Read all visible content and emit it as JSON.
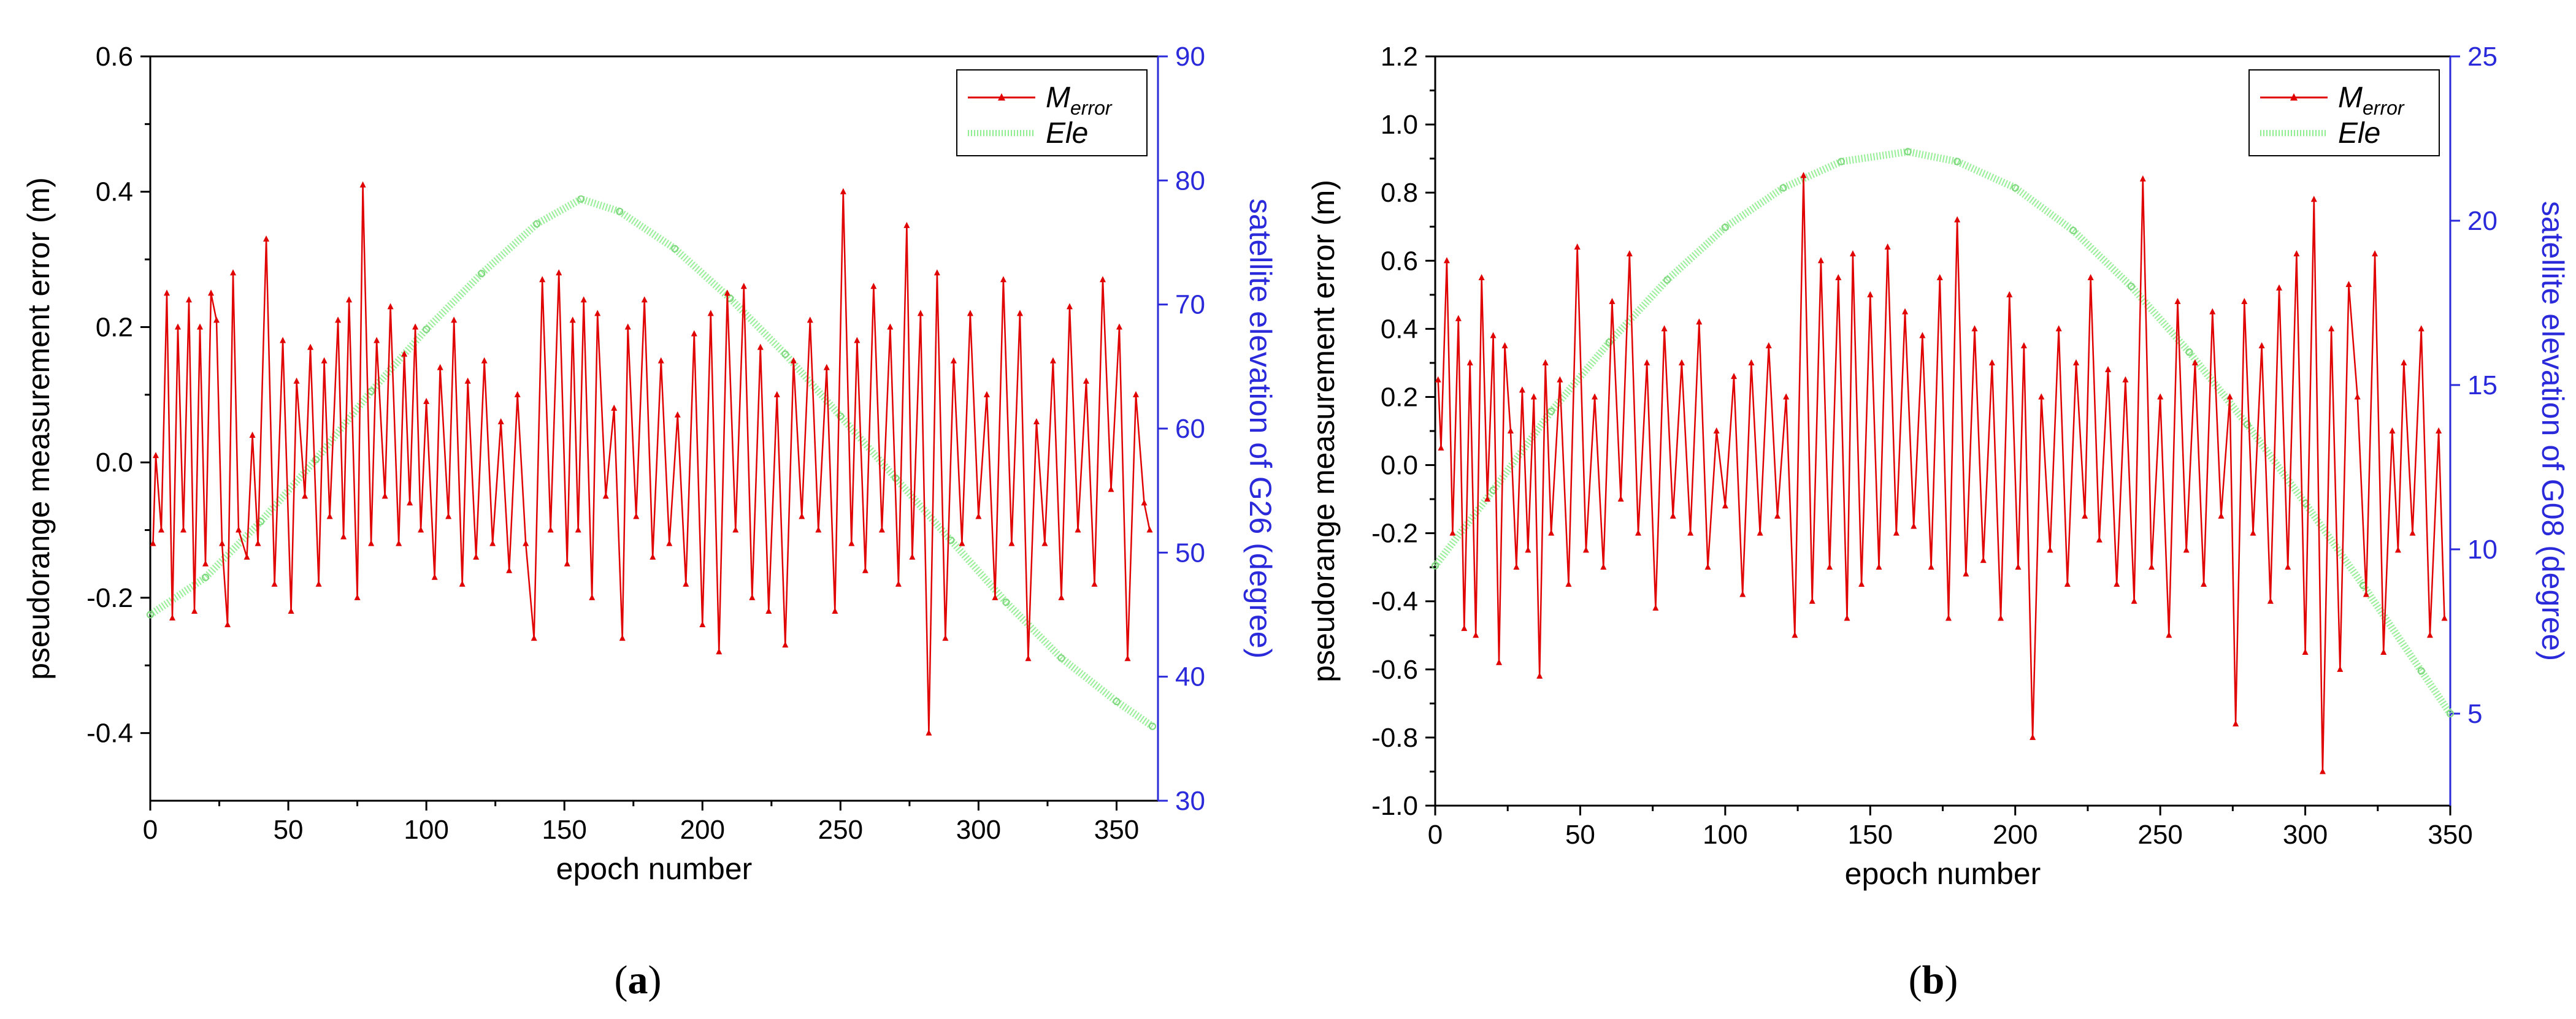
{
  "charts": [
    {
      "panel": "a",
      "panel_label_open": "(",
      "panel_label_letter": "a",
      "panel_label_close": ")",
      "xlabel": "epoch number",
      "ylabel_left": "pseudorange measurement error (m)",
      "ylabel_right": "satellite elevation of G26 (degree)",
      "xlim": [
        0,
        365
      ],
      "ylim_left": [
        -0.5,
        0.6
      ],
      "ylim_right": [
        30,
        90
      ],
      "xticks": [
        0,
        50,
        100,
        150,
        200,
        250,
        300,
        350
      ],
      "yticks_left": [
        "-0.4",
        "-0.2",
        "0.0",
        "0.2",
        "0.4",
        "0.6"
      ],
      "yticks_left_values": [
        -0.4,
        -0.2,
        0.0,
        0.2,
        0.4,
        0.6
      ],
      "yticks_right": [
        30,
        40,
        50,
        60,
        70,
        80,
        90
      ],
      "legend": [
        "M",
        "Ele"
      ],
      "legend_sub": "error"
    },
    {
      "panel": "b",
      "panel_label_open": "(",
      "panel_label_letter": "b",
      "panel_label_close": ")",
      "xlabel": "epoch number",
      "ylabel_left": "pseudorange measurement error (m)",
      "ylabel_right": "satellite elevation of G08 (degree)",
      "xlim": [
        0,
        350
      ],
      "ylim_left": [
        -1.0,
        1.2
      ],
      "ylim_right": [
        2.2,
        25
      ],
      "xticks": [
        0,
        50,
        100,
        150,
        200,
        250,
        300,
        350
      ],
      "yticks_left": [
        "-1.0",
        "-0.8",
        "-0.6",
        "-0.4",
        "-0.2",
        "0.0",
        "0.2",
        "0.4",
        "0.6",
        "0.8",
        "1.0",
        "1.2"
      ],
      "yticks_left_values": [
        -1.0,
        -0.8,
        -0.6,
        -0.4,
        -0.2,
        0.0,
        0.2,
        0.4,
        0.6,
        0.8,
        1.0,
        1.2
      ],
      "yticks_right": [
        5,
        10,
        15,
        20,
        25
      ],
      "legend": [
        "M",
        "Ele"
      ],
      "legend_sub": "error"
    }
  ],
  "chart_data": [
    {
      "type": "line",
      "title": "(a)",
      "xlabel": "epoch number",
      "ylabel": "pseudorange measurement error (m)",
      "y2label": "satellite elevation of G26 (degree)",
      "series": [
        {
          "name": "M_error",
          "axis": "left",
          "color": "#e00000",
          "x": [
            1,
            2,
            4,
            6,
            8,
            10,
            12,
            14,
            16,
            18,
            20,
            22,
            24,
            26,
            28,
            30,
            32,
            35,
            37,
            39,
            42,
            45,
            48,
            51,
            53,
            56,
            58,
            61,
            63,
            65,
            68,
            70,
            72,
            75,
            77,
            80,
            82,
            85,
            87,
            90,
            92,
            94,
            96,
            98,
            100,
            103,
            105,
            108,
            110,
            113,
            115,
            118,
            121,
            124,
            127,
            130,
            133,
            136,
            139,
            142,
            145,
            148,
            151,
            153,
            155,
            157,
            160,
            162,
            165,
            168,
            171,
            173,
            176,
            179,
            182,
            185,
            188,
            191,
            194,
            197,
            200,
            203,
            206,
            209,
            212,
            215,
            218,
            221,
            224,
            227,
            230,
            233,
            236,
            239,
            242,
            245,
            248,
            251,
            254,
            256,
            259,
            262,
            265,
            268,
            271,
            274,
            276,
            279,
            282,
            285,
            288,
            291,
            294,
            297,
            300,
            303,
            306,
            309,
            312,
            315,
            318,
            321,
            324,
            327,
            330,
            333,
            336,
            339,
            342,
            345,
            348,
            351,
            354,
            357,
            360,
            362
          ],
          "values": [
            -0.12,
            0.01,
            -0.1,
            0.25,
            -0.23,
            0.2,
            -0.1,
            0.24,
            -0.22,
            0.2,
            -0.15,
            0.25,
            0.21,
            -0.12,
            -0.24,
            0.28,
            -0.1,
            -0.14,
            0.04,
            -0.12,
            0.33,
            -0.18,
            0.18,
            -0.22,
            0.12,
            -0.05,
            0.17,
            -0.18,
            0.15,
            -0.08,
            0.21,
            -0.11,
            0.24,
            -0.2,
            0.41,
            -0.12,
            0.18,
            -0.05,
            0.23,
            -0.12,
            0.16,
            -0.06,
            0.2,
            -0.1,
            0.09,
            -0.17,
            0.14,
            -0.08,
            0.21,
            -0.18,
            0.12,
            -0.14,
            0.15,
            -0.12,
            0.06,
            -0.16,
            0.1,
            -0.12,
            -0.26,
            0.27,
            -0.1,
            0.28,
            -0.15,
            0.21,
            -0.1,
            0.24,
            -0.2,
            0.22,
            -0.05,
            0.08,
            -0.26,
            0.2,
            -0.08,
            0.24,
            -0.14,
            0.15,
            -0.12,
            0.07,
            -0.18,
            0.19,
            -0.24,
            0.22,
            -0.28,
            0.25,
            -0.1,
            0.26,
            -0.2,
            0.17,
            -0.22,
            0.1,
            -0.27,
            0.15,
            -0.08,
            0.21,
            -0.1,
            0.14,
            -0.22,
            0.4,
            -0.12,
            0.18,
            -0.16,
            0.26,
            -0.1,
            0.2,
            -0.18,
            0.35,
            -0.14,
            0.22,
            -0.4,
            0.28,
            -0.26,
            0.15,
            -0.12,
            0.22,
            -0.08,
            0.1,
            -0.2,
            0.27,
            -0.12,
            0.22,
            -0.29,
            0.06,
            -0.12,
            0.15,
            -0.2,
            0.23,
            -0.1,
            0.12,
            -0.18,
            0.27,
            -0.04,
            0.2,
            -0.29,
            0.1,
            -0.06,
            -0.1
          ]
        },
        {
          "name": "Ele",
          "axis": "right",
          "color": "#90ee90",
          "x": [
            0,
            20,
            40,
            60,
            80,
            100,
            120,
            140,
            156,
            170,
            190,
            210,
            230,
            250,
            270,
            290,
            310,
            330,
            350,
            363
          ],
          "values": [
            45,
            48,
            52.5,
            57.5,
            63,
            68,
            72.5,
            76.5,
            78.5,
            77.5,
            74.5,
            70.5,
            66,
            61,
            56,
            51,
            46,
            41.5,
            38,
            36
          ]
        }
      ],
      "xlim": [
        0,
        365
      ],
      "ylim": [
        -0.5,
        0.6
      ],
      "y2lim": [
        30,
        90
      ],
      "legend_position": "top-right"
    },
    {
      "type": "line",
      "title": "(b)",
      "xlabel": "epoch number",
      "ylabel": "pseudorange measurement error (m)",
      "y2label": "satellite elevation of G08 (degree)",
      "series": [
        {
          "name": "M_error",
          "axis": "left",
          "color": "#e00000",
          "x": [
            1,
            2,
            4,
            6,
            8,
            10,
            12,
            14,
            16,
            18,
            20,
            22,
            24,
            26,
            28,
            30,
            32,
            34,
            36,
            38,
            40,
            43,
            46,
            49,
            52,
            55,
            58,
            61,
            64,
            67,
            70,
            73,
            76,
            79,
            82,
            85,
            88,
            91,
            94,
            97,
            100,
            103,
            106,
            109,
            112,
            115,
            118,
            121,
            124,
            127,
            130,
            133,
            136,
            139,
            142,
            144,
            147,
            150,
            153,
            156,
            159,
            162,
            165,
            168,
            171,
            174,
            177,
            180,
            183,
            186,
            189,
            192,
            195,
            198,
            201,
            203,
            206,
            209,
            212,
            215,
            218,
            221,
            224,
            226,
            229,
            232,
            235,
            238,
            241,
            244,
            247,
            250,
            253,
            256,
            259,
            262,
            265,
            268,
            271,
            274,
            276,
            279,
            282,
            285,
            288,
            291,
            294,
            297,
            300,
            303,
            306,
            309,
            312,
            315,
            318,
            321,
            324,
            327,
            330,
            332,
            334,
            337,
            340,
            343,
            346,
            348
          ],
          "values": [
            0.25,
            0.05,
            0.6,
            -0.2,
            0.43,
            -0.48,
            0.3,
            -0.5,
            0.55,
            -0.1,
            0.38,
            -0.58,
            0.35,
            0.1,
            -0.3,
            0.22,
            -0.25,
            0.2,
            -0.62,
            0.3,
            -0.2,
            0.25,
            -0.35,
            0.64,
            -0.25,
            0.2,
            -0.3,
            0.48,
            -0.1,
            0.62,
            -0.2,
            0.3,
            -0.42,
            0.4,
            -0.15,
            0.3,
            -0.2,
            0.42,
            -0.3,
            0.1,
            -0.12,
            0.26,
            -0.38,
            0.3,
            -0.2,
            0.35,
            -0.15,
            0.2,
            -0.5,
            0.85,
            -0.4,
            0.6,
            -0.3,
            0.55,
            -0.45,
            0.62,
            -0.35,
            0.5,
            -0.3,
            0.64,
            -0.2,
            0.45,
            -0.18,
            0.38,
            -0.3,
            0.55,
            -0.45,
            0.72,
            -0.32,
            0.4,
            -0.28,
            0.3,
            -0.45,
            0.5,
            -0.3,
            0.35,
            -0.8,
            0.2,
            -0.25,
            0.4,
            -0.35,
            0.3,
            -0.15,
            0.55,
            -0.22,
            0.28,
            -0.35,
            0.25,
            -0.4,
            0.84,
            -0.3,
            0.2,
            -0.5,
            0.48,
            -0.25,
            0.3,
            -0.35,
            0.45,
            -0.15,
            0.2,
            -0.76,
            0.48,
            -0.2,
            0.35,
            -0.4,
            0.52,
            -0.3,
            0.62,
            -0.55,
            0.78,
            -0.9,
            0.4,
            -0.6,
            0.53,
            0.2,
            -0.38,
            0.62,
            -0.55,
            0.1,
            -0.25,
            0.3,
            -0.2,
            0.4,
            -0.5,
            0.1,
            -0.45
          ]
        },
        {
          "name": "Ele",
          "axis": "right",
          "color": "#90ee90",
          "x": [
            0,
            20,
            40,
            60,
            80,
            100,
            120,
            140,
            163,
            180,
            200,
            220,
            240,
            260,
            280,
            300,
            320,
            340,
            350
          ],
          "values": [
            9.5,
            11.8,
            14.2,
            16.3,
            18.2,
            19.8,
            21.0,
            21.8,
            22.1,
            21.8,
            21.0,
            19.7,
            18.0,
            16.0,
            13.8,
            11.4,
            8.9,
            6.3,
            5.0
          ]
        }
      ],
      "xlim": [
        0,
        350
      ],
      "ylim": [
        -1.0,
        1.2
      ],
      "y2lim": [
        2.2,
        25
      ],
      "legend_position": "top-right"
    }
  ]
}
